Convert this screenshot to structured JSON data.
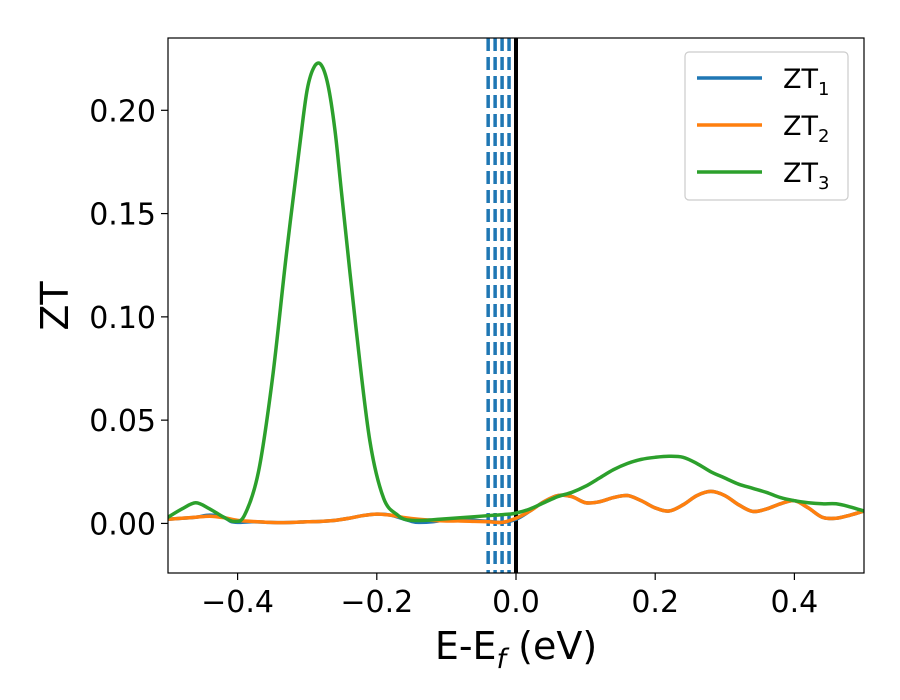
{
  "chart_data": {
    "type": "line",
    "title": "",
    "xlabel": "E-E",
    "xlabel_sub": "f",
    "xlabel_unit": " (eV)",
    "ylabel": "ZT",
    "xlim": [
      -0.5,
      0.5
    ],
    "ylim": [
      -0.024,
      0.235
    ],
    "grid": false,
    "legend_position": "top-right",
    "x_ticks": [
      -0.4,
      -0.2,
      0.0,
      0.2,
      0.4
    ],
    "x_tick_labels": [
      "−0.4",
      "−0.2",
      "0.0",
      "0.2",
      "0.4"
    ],
    "y_ticks": [
      0.0,
      0.05,
      0.1,
      0.15,
      0.2
    ],
    "y_tick_labels": [
      "0.00",
      "0.05",
      "0.10",
      "0.15",
      "0.20"
    ],
    "vertical_lines": [
      {
        "x": 0.0,
        "style": "solid",
        "color": "#000000"
      },
      {
        "x": -0.04,
        "style": "dashed",
        "color": "#1f77b4"
      },
      {
        "x": -0.03,
        "style": "dashed",
        "color": "#1f77b4"
      },
      {
        "x": -0.02,
        "style": "dashed",
        "color": "#1f77b4"
      },
      {
        "x": -0.01,
        "style": "dashed",
        "color": "#1f77b4"
      }
    ],
    "series": [
      {
        "name": "ZT",
        "name_sub": "1",
        "color": "#1f77b4",
        "x": [
          -0.5,
          -0.48,
          -0.46,
          -0.44,
          -0.42,
          -0.41,
          -0.4,
          -0.38,
          -0.36,
          -0.34,
          -0.32,
          -0.3,
          -0.28,
          -0.26,
          -0.24,
          -0.22,
          -0.2,
          -0.18,
          -0.16,
          -0.15,
          -0.14,
          -0.12,
          -0.1,
          -0.08,
          -0.06,
          -0.04,
          -0.02,
          0.0,
          0.02,
          0.04,
          0.06,
          0.08,
          0.1,
          0.12,
          0.14,
          0.16,
          0.18,
          0.2,
          0.22,
          0.24,
          0.26,
          0.28,
          0.3,
          0.32,
          0.34,
          0.36,
          0.38,
          0.4,
          0.42,
          0.44,
          0.46,
          0.48,
          0.5
        ],
        "y": [
          0.002,
          0.0025,
          0.003,
          0.004,
          0.003,
          0.001,
          0.0005,
          0.0008,
          0.0006,
          0.0004,
          0.0005,
          0.0008,
          0.001,
          0.0015,
          0.0025,
          0.0038,
          0.0045,
          0.004,
          0.002,
          0.001,
          0.0005,
          0.0008,
          0.0018,
          0.002,
          0.0015,
          0.001,
          0.0005,
          0.002,
          0.006,
          0.0105,
          0.0135,
          0.013,
          0.01,
          0.0105,
          0.0125,
          0.0135,
          0.011,
          0.0075,
          0.006,
          0.009,
          0.0135,
          0.0155,
          0.0135,
          0.009,
          0.0058,
          0.007,
          0.0095,
          0.011,
          0.0075,
          0.003,
          0.0025,
          0.004,
          0.006
        ]
      },
      {
        "name": "ZT",
        "name_sub": "2",
        "color": "#ff7f0e",
        "x": [
          -0.5,
          -0.48,
          -0.46,
          -0.44,
          -0.42,
          -0.4,
          -0.38,
          -0.36,
          -0.34,
          -0.32,
          -0.3,
          -0.28,
          -0.26,
          -0.24,
          -0.22,
          -0.2,
          -0.18,
          -0.16,
          -0.14,
          -0.12,
          -0.1,
          -0.08,
          -0.06,
          -0.04,
          -0.02,
          0.0,
          0.02,
          0.04,
          0.06,
          0.08,
          0.1,
          0.12,
          0.14,
          0.16,
          0.18,
          0.2,
          0.22,
          0.24,
          0.26,
          0.28,
          0.3,
          0.32,
          0.34,
          0.36,
          0.38,
          0.4,
          0.42,
          0.44,
          0.46,
          0.48,
          0.5
        ],
        "y": [
          0.002,
          0.0025,
          0.003,
          0.0035,
          0.0028,
          0.0015,
          0.001,
          0.0006,
          0.0004,
          0.0005,
          0.0008,
          0.001,
          0.0015,
          0.0025,
          0.0038,
          0.0045,
          0.004,
          0.0028,
          0.002,
          0.0015,
          0.0012,
          0.0012,
          0.001,
          0.0008,
          0.0005,
          0.0025,
          0.006,
          0.0105,
          0.0135,
          0.013,
          0.01,
          0.0105,
          0.0125,
          0.0135,
          0.011,
          0.0075,
          0.006,
          0.009,
          0.0135,
          0.0155,
          0.0135,
          0.009,
          0.0058,
          0.007,
          0.0095,
          0.011,
          0.0075,
          0.003,
          0.0025,
          0.004,
          0.006
        ]
      },
      {
        "name": "ZT",
        "name_sub": "3",
        "color": "#2ca02c",
        "x": [
          -0.5,
          -0.48,
          -0.46,
          -0.44,
          -0.42,
          -0.405,
          -0.39,
          -0.37,
          -0.35,
          -0.33,
          -0.31,
          -0.3,
          -0.29,
          -0.28,
          -0.27,
          -0.26,
          -0.25,
          -0.23,
          -0.21,
          -0.19,
          -0.17,
          -0.16,
          -0.15,
          -0.13,
          -0.11,
          -0.09,
          -0.07,
          -0.05,
          -0.03,
          -0.01,
          0.0,
          0.02,
          0.04,
          0.06,
          0.08,
          0.1,
          0.12,
          0.14,
          0.16,
          0.18,
          0.2,
          0.22,
          0.24,
          0.26,
          0.28,
          0.3,
          0.32,
          0.34,
          0.36,
          0.38,
          0.4,
          0.42,
          0.44,
          0.46,
          0.48,
          0.5
        ],
        "y": [
          0.003,
          0.007,
          0.01,
          0.007,
          0.003,
          0.001,
          0.004,
          0.025,
          0.07,
          0.13,
          0.185,
          0.21,
          0.221,
          0.222,
          0.212,
          0.19,
          0.158,
          0.095,
          0.04,
          0.012,
          0.004,
          0.002,
          0.0015,
          0.0015,
          0.002,
          0.0025,
          0.003,
          0.0035,
          0.004,
          0.0045,
          0.005,
          0.007,
          0.01,
          0.013,
          0.015,
          0.018,
          0.022,
          0.026,
          0.029,
          0.031,
          0.032,
          0.0325,
          0.032,
          0.029,
          0.025,
          0.022,
          0.019,
          0.017,
          0.015,
          0.0125,
          0.011,
          0.01,
          0.0095,
          0.0095,
          0.008,
          0.006
        ]
      }
    ]
  }
}
